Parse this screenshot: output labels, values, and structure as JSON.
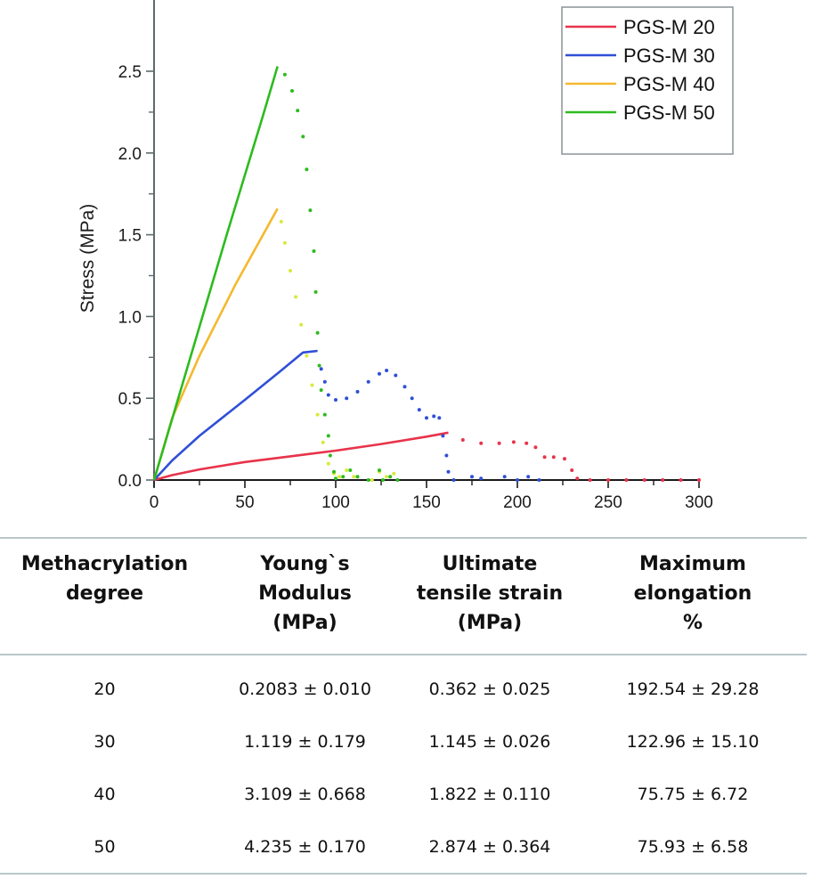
{
  "chart_data": {
    "type": "line",
    "title": "",
    "xlabel": "",
    "ylabel": "Stress (MPa)",
    "xlim": [
      0,
      300
    ],
    "ylim": [
      0,
      2.65
    ],
    "x_ticks": [
      0,
      50,
      100,
      150,
      200,
      250,
      300
    ],
    "x_tick_labels": [
      "0",
      "50",
      "100",
      "150",
      "200",
      "250",
      "300"
    ],
    "x_minor_ticks": [
      25,
      75,
      125,
      175,
      225,
      275
    ],
    "y_ticks": [
      0.0,
      0.5,
      1.0,
      1.5,
      2.0,
      2.5
    ],
    "y_tick_labels": [
      "0.0",
      "0.5",
      "1.0",
      "1.5",
      "2.0",
      "2.5"
    ],
    "y_minor_ticks": [
      0.25,
      0.75,
      1.25,
      1.75,
      2.25
    ],
    "grid": false,
    "legend_position": "top-right",
    "series": [
      {
        "name": "PGS-M 20",
        "color": "#e8334a",
        "solid": [
          [
            0,
            0
          ],
          [
            10,
            0.03
          ],
          [
            25,
            0.065
          ],
          [
            50,
            0.11
          ],
          [
            75,
            0.145
          ],
          [
            100,
            0.18
          ],
          [
            125,
            0.22
          ],
          [
            150,
            0.265
          ],
          [
            162,
            0.29
          ]
        ],
        "dotted": [
          [
            170,
            0.245
          ],
          [
            180,
            0.225
          ],
          [
            190,
            0.225
          ],
          [
            198,
            0.232
          ],
          [
            205,
            0.225
          ],
          [
            210,
            0.2
          ],
          [
            215,
            0.14
          ],
          [
            220,
            0.14
          ],
          [
            226,
            0.13
          ],
          [
            230,
            0.06
          ],
          [
            233,
            0.01
          ],
          [
            240,
            0.0
          ],
          [
            250,
            0.0
          ],
          [
            260,
            0.0
          ],
          [
            270,
            0.0
          ],
          [
            280,
            0.0
          ],
          [
            290,
            0.0
          ],
          [
            300,
            0.0
          ]
        ]
      },
      {
        "name": "PGS-M 30",
        "color": "#2f4fd6",
        "solid": [
          [
            0,
            0
          ],
          [
            10,
            0.12
          ],
          [
            25,
            0.27
          ],
          [
            50,
            0.49
          ],
          [
            70,
            0.67
          ],
          [
            82,
            0.78
          ],
          [
            90,
            0.79
          ]
        ],
        "dotted": [
          [
            92,
            0.68
          ],
          [
            94,
            0.6
          ],
          [
            96,
            0.52
          ],
          [
            100,
            0.49
          ],
          [
            106,
            0.5
          ],
          [
            112,
            0.54
          ],
          [
            118,
            0.6
          ],
          [
            124,
            0.65
          ],
          [
            128,
            0.67
          ],
          [
            133,
            0.64
          ],
          [
            138,
            0.57
          ],
          [
            142,
            0.5
          ],
          [
            146,
            0.43
          ],
          [
            150,
            0.38
          ],
          [
            154,
            0.39
          ],
          [
            157,
            0.38
          ],
          [
            159,
            0.27
          ],
          [
            161,
            0.15
          ],
          [
            162,
            0.05
          ],
          [
            165,
            0.0
          ],
          [
            175,
            0.02
          ],
          [
            180,
            0.01
          ],
          [
            193,
            0.02
          ],
          [
            200,
            0.0
          ],
          [
            206,
            0.02
          ],
          [
            212,
            0.0
          ]
        ]
      },
      {
        "name": "PGS-M 40",
        "color": "#f5b82e",
        "solid": [
          [
            0,
            0
          ],
          [
            10,
            0.38
          ],
          [
            25,
            0.76
          ],
          [
            45,
            1.2
          ],
          [
            60,
            1.5
          ],
          [
            68,
            1.66
          ]
        ],
        "dotted": [
          [
            70,
            1.58
          ],
          [
            72,
            1.45
          ],
          [
            75,
            1.28
          ],
          [
            78,
            1.12
          ],
          [
            81,
            0.95
          ],
          [
            84,
            0.76
          ],
          [
            87,
            0.58
          ],
          [
            90,
            0.4
          ],
          [
            93,
            0.23
          ],
          [
            96,
            0.1
          ],
          [
            99,
            0.04
          ],
          [
            102,
            0.02
          ],
          [
            106,
            0.06
          ],
          [
            110,
            0.02
          ],
          [
            120,
            0.0
          ],
          [
            124,
            0.05
          ],
          [
            128,
            0.02
          ],
          [
            132,
            0.04
          ]
        ]
      },
      {
        "name": "PGS-M 50",
        "color": "#2dbb1f",
        "solid": [
          [
            0,
            0
          ],
          [
            20,
            0.75
          ],
          [
            40,
            1.5
          ],
          [
            60,
            2.23
          ],
          [
            68,
            2.53
          ]
        ],
        "dotted": [
          [
            72,
            2.48
          ],
          [
            76,
            2.38
          ],
          [
            79,
            2.26
          ],
          [
            82,
            2.1
          ],
          [
            84,
            1.9
          ],
          [
            86,
            1.65
          ],
          [
            88,
            1.4
          ],
          [
            89,
            1.15
          ],
          [
            90,
            0.9
          ],
          [
            91,
            0.7
          ],
          [
            92,
            0.55
          ],
          [
            94,
            0.4
          ],
          [
            96,
            0.27
          ],
          [
            97,
            0.15
          ],
          [
            99,
            0.05
          ],
          [
            100,
            0.01
          ],
          [
            104,
            0.02
          ],
          [
            108,
            0.06
          ],
          [
            112,
            0.02
          ],
          [
            118,
            0.0
          ],
          [
            124,
            0.06
          ],
          [
            126,
            0.0
          ],
          [
            130,
            0.02
          ],
          [
            134,
            0.0
          ]
        ]
      }
    ]
  },
  "table": {
    "headers": [
      [
        "Methacrylation",
        "degree"
      ],
      [
        "Young`s",
        "Modulus",
        "(MPa)"
      ],
      [
        "Ultimate",
        "tensile strain",
        "(MPa)"
      ],
      [
        "Maximum",
        "elongation",
        "%"
      ]
    ],
    "rows": [
      [
        "20",
        "0.2083 ± 0.010",
        "0.362 ± 0.025",
        "192.54 ± 29.28"
      ],
      [
        "30",
        "1.119 ± 0.179",
        "1.145 ± 0.026",
        "122.96 ± 15.10"
      ],
      [
        "40",
        "3.109 ± 0.668",
        "1.822 ± 0.110",
        "75.75 ± 6.72"
      ],
      [
        "50",
        "4.235 ± 0.170",
        "2.874 ± 0.364",
        "75.93 ± 6.58"
      ]
    ]
  }
}
